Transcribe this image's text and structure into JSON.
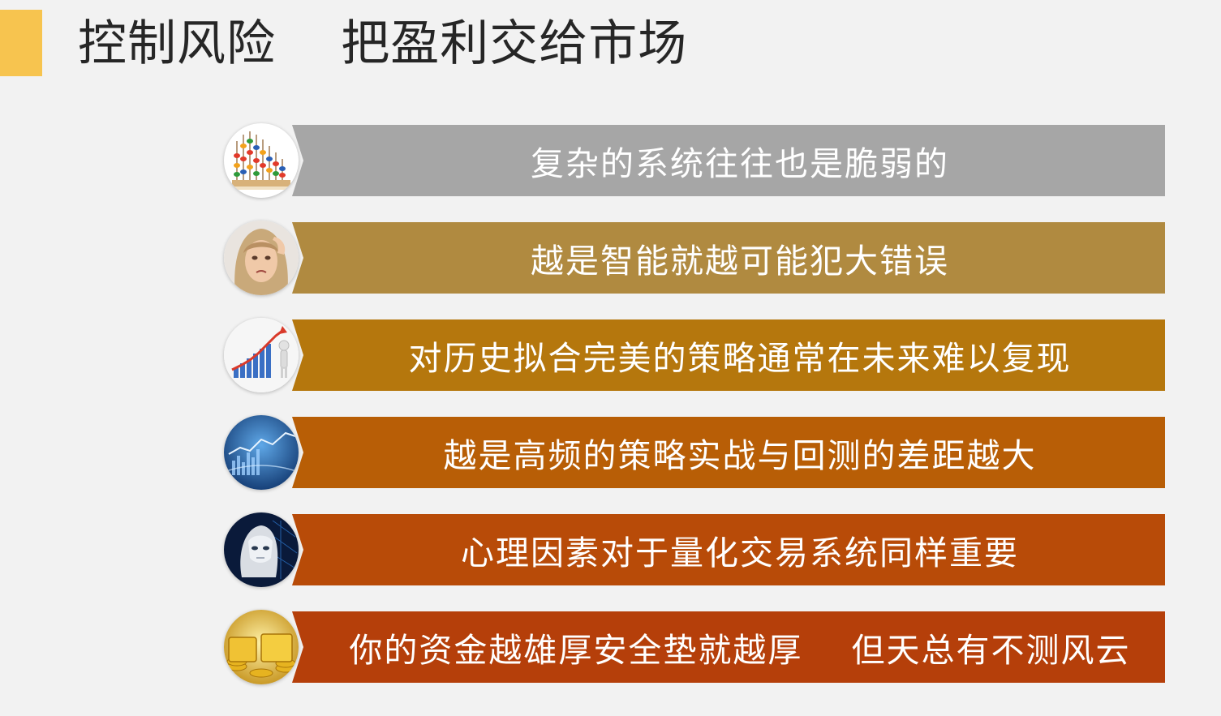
{
  "slide": {
    "title": "控制风险    把盈利交给市场",
    "accent_color": "#f7c44f"
  },
  "items": [
    {
      "text": "复杂的系统往往也是脆弱的",
      "color": "#a6a6a6",
      "icon": "abacus-icon"
    },
    {
      "text": "越是智能就越可能犯大错误",
      "color": "#b08a40",
      "icon": "stressed-person-icon"
    },
    {
      "text": "对历史拟合完美的策略通常在未来难以复现",
      "color": "#b5770d",
      "icon": "growth-chart-icon"
    },
    {
      "text": "越是高频的策略实战与回测的差距越大",
      "color": "#b85e06",
      "icon": "market-data-icon"
    },
    {
      "text": "心理因素对于量化交易系统同样重要",
      "color": "#b84b08",
      "icon": "robot-head-icon"
    },
    {
      "text": "你的资金越雄厚安全垫就越厚    但天总有不测风云",
      "color": "#b53f0a",
      "icon": "gold-fund-icon"
    }
  ]
}
